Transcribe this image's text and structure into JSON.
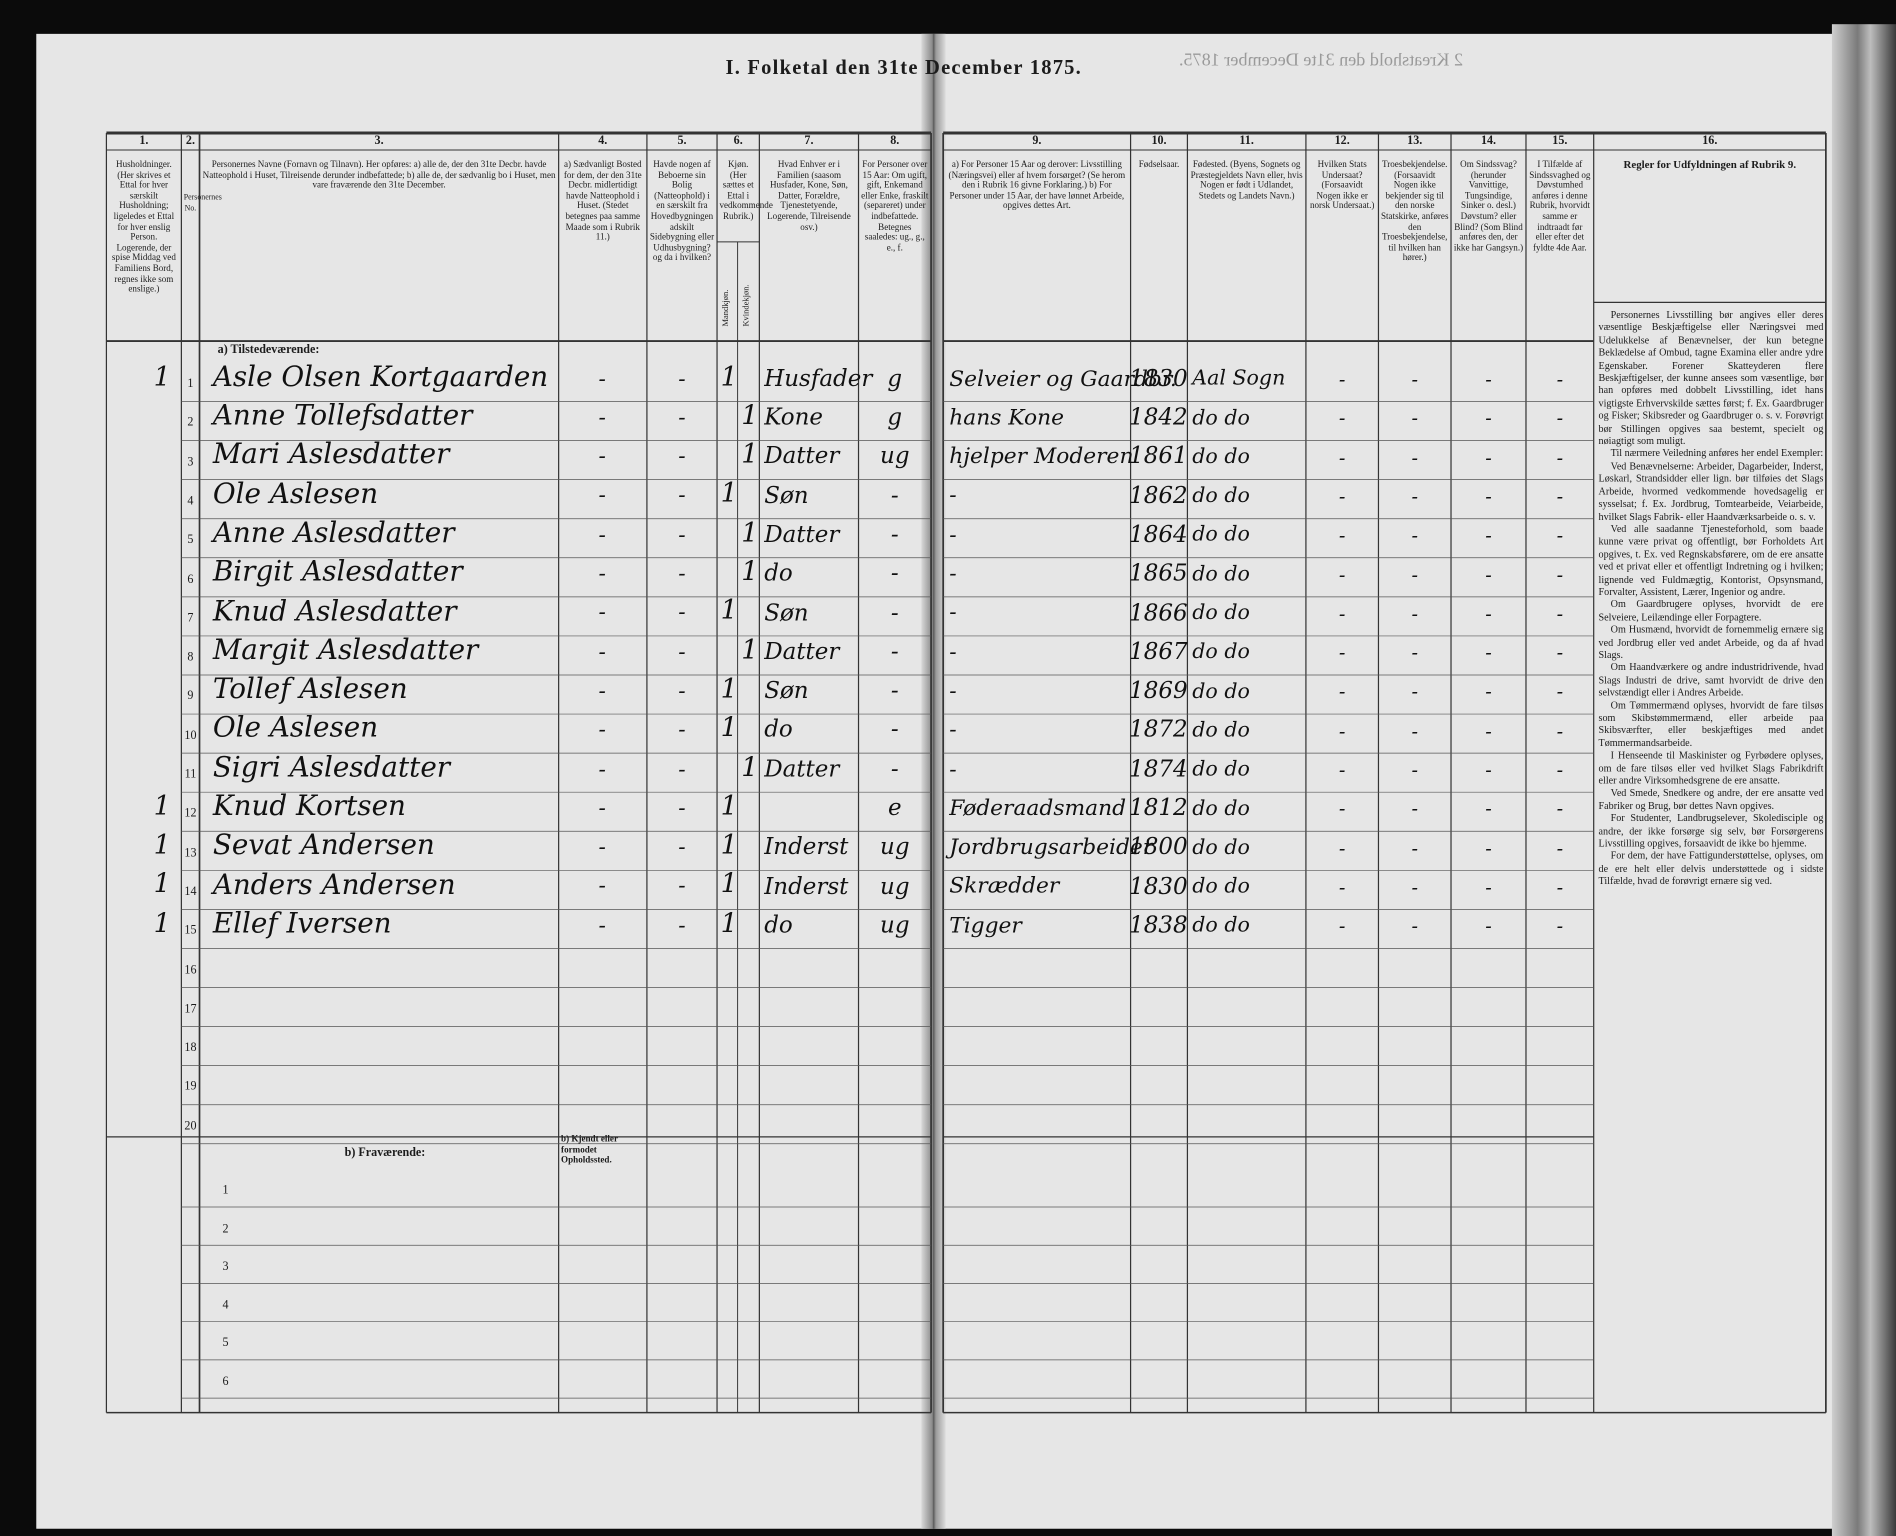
{
  "header": {
    "title": "I. Folketal den 31te December 1875.",
    "right_title": "2 Kreatshold den 31te December 1875."
  },
  "columns": [
    {
      "number": "1.",
      "heading": "Husholdninger. (Her skrives et Ettal for hver særskilt Husholdning; ligeledes et Ettal for hver enslig Person. Logerende, der spise Middag ved Familiens Bord, regnes ikke som enslige.)"
    },
    {
      "number": "2.",
      "heading": "Personernes No."
    },
    {
      "number": "3.",
      "heading": "Personernes Navne (Fornavn og Tilnavn). Her opføres: a) alle de, der den 31te Decbr. havde Natteophold i Huset, Tilreisende derunder indbefattede; b) alle de, der sædvanlig bo i Huset, men vare fraværende den 31te December."
    },
    {
      "number": "4.",
      "heading": "a) Sædvanligt Bosted for dem, der den 31te Decbr. midlertidigt havde Natteophold i Huset. (Stedet betegnes paa samme Maade som i Rubrik 11.)"
    },
    {
      "number": "5.",
      "heading": "Havde nogen af Beboerne sin Bolig (Natteophold) i en særskilt fra Hovedbygningen adskilt Sidebygning eller Udhusbygning? og da i hvilken?"
    },
    {
      "number": "6.",
      "heading": "Kjøn. (Her sættes et Ettal i vedkommende Rubrik.)",
      "sub": [
        "Mandkjøn.",
        "Kvindekjøn."
      ]
    },
    {
      "number": "7.",
      "heading": "Hvad Enhver er i Familien (saasom Husfader, Kone, Søn, Datter, Forældre, Tjenestetyende, Logerende, Tilreisende osv.)"
    },
    {
      "number": "8.",
      "heading": "For Personer over 15 Aar: Om ugift, gift, Enkemand eller Enke, fraskilt (separeret) under indbefattede. Betegnes saaledes: ug., g., e., f."
    },
    {
      "number": "9.",
      "heading": "a) For Personer 15 Aar og derover: Livsstilling (Næringsvei) eller af hvem forsørget? (Se herom den i Rubrik 16 givne Forklaring.) b) For Personer under 15 Aar, der have lønnet Arbeide, opgives dettes Art."
    },
    {
      "number": "10.",
      "heading": "Fødselsaar."
    },
    {
      "number": "11.",
      "heading": "Fødested. (Byens, Sognets og Præstegjeldets Navn eller, hvis Nogen er født i Udlandet, Stedets og Landets Navn.)"
    },
    {
      "number": "12.",
      "heading": "Hvilken Stats Undersaat? (Forsaavidt Nogen ikke er norsk Undersaat.)"
    },
    {
      "number": "13.",
      "heading": "Troesbekjendelse. (Forsaavidt Nogen ikke bekjender sig til den norske Statskirke, anføres den Troesbekjendelse, til hvilken han hører.)"
    },
    {
      "number": "14.",
      "heading": "Om Sindssvag? (herunder Vanvittige, Tungsindige, Sinker o. desl.) Døvstum? eller Blind? (Som Blind anføres den, der ikke har Gangsyn.)"
    },
    {
      "number": "15.",
      "heading": "I Tilfælde af Sindssvaghed og Døvstumhed anføres i denne Rubrik, hvorvidt samme er indtraadt før eller efter det fyldte 4de Aar."
    },
    {
      "number": "16.",
      "heading": "Regler for Udfyldningen af Rubrik 9."
    }
  ],
  "sections": {
    "present": "a) Tilstedeværende:",
    "absent": "b) Fraværende:",
    "absent_col4": "b) Kjendt eller formodet Opholdssted."
  },
  "rows": [
    {
      "number": "1",
      "household": "1",
      "name": "Asle Olsen Kortgaarden",
      "residence": "-",
      "building": "-",
      "male": "1",
      "female": null,
      "family": "Husfader",
      "marital": "g",
      "occupation": "Selveier og Gaardbr.",
      "birth_year": "1830",
      "birthplace": "Aal Sogn",
      "subject": "-",
      "faith": "-",
      "infirmity": "-",
      "onset": "-"
    },
    {
      "number": "2",
      "household": null,
      "name": "Anne Tollefsdatter",
      "residence": "-",
      "building": "-",
      "male": null,
      "female": "1",
      "family": "Kone",
      "marital": "g",
      "occupation": "hans Kone",
      "birth_year": "1842",
      "birthplace": "do do",
      "subject": "-",
      "faith": "-",
      "infirmity": "-",
      "onset": "-"
    },
    {
      "number": "3",
      "household": null,
      "name": "Mari Aslesdatter",
      "residence": "-",
      "building": "-",
      "male": null,
      "female": "1",
      "family": "Datter",
      "marital": "ug",
      "occupation": "hjelper Moderen",
      "birth_year": "1861",
      "birthplace": "do do",
      "subject": "-",
      "faith": "-",
      "infirmity": "-",
      "onset": "-"
    },
    {
      "number": "4",
      "household": null,
      "name": "Ole Aslesen",
      "residence": "-",
      "building": "-",
      "male": "1",
      "female": null,
      "family": "Søn",
      "marital": "-",
      "occupation": "-",
      "birth_year": "1862",
      "birthplace": "do do",
      "subject": "-",
      "faith": "-",
      "infirmity": "-",
      "onset": "-"
    },
    {
      "number": "5",
      "household": null,
      "name": "Anne Aslesdatter",
      "residence": "-",
      "building": "-",
      "male": null,
      "female": "1",
      "family": "Datter",
      "marital": "-",
      "occupation": "-",
      "birth_year": "1864",
      "birthplace": "do do",
      "subject": "-",
      "faith": "-",
      "infirmity": "-",
      "onset": "-"
    },
    {
      "number": "6",
      "household": null,
      "name": "Birgit Aslesdatter",
      "residence": "-",
      "building": "-",
      "male": null,
      "female": "1",
      "family": "do",
      "marital": "-",
      "occupation": "-",
      "birth_year": "1865",
      "birthplace": "do do",
      "subject": "-",
      "faith": "-",
      "infirmity": "-",
      "onset": "-"
    },
    {
      "number": "7",
      "household": null,
      "name": "Knud Aslesdatter",
      "residence": "-",
      "building": "-",
      "male": "1",
      "female": null,
      "family": "Søn",
      "marital": "-",
      "occupation": "-",
      "birth_year": "1866",
      "birthplace": "do do",
      "subject": "-",
      "faith": "-",
      "infirmity": "-",
      "onset": "-"
    },
    {
      "number": "8",
      "household": null,
      "name": "Margit Aslesdatter",
      "residence": "-",
      "building": "-",
      "male": null,
      "female": "1",
      "family": "Datter",
      "marital": "-",
      "occupation": "-",
      "birth_year": "1867",
      "birthplace": "do do",
      "subject": "-",
      "faith": "-",
      "infirmity": "-",
      "onset": "-"
    },
    {
      "number": "9",
      "household": null,
      "name": "Tollef Aslesen",
      "residence": "-",
      "building": "-",
      "male": "1",
      "female": null,
      "family": "Søn",
      "marital": "-",
      "occupation": "-",
      "birth_year": "1869",
      "birthplace": "do do",
      "subject": "-",
      "faith": "-",
      "infirmity": "-",
      "onset": "-"
    },
    {
      "number": "10",
      "household": null,
      "name": "Ole Aslesen",
      "residence": "-",
      "building": "-",
      "male": "1",
      "female": null,
      "family": "do",
      "marital": "-",
      "occupation": "-",
      "birth_year": "1872",
      "birthplace": "do do",
      "subject": "-",
      "faith": "-",
      "infirmity": "-",
      "onset": "-"
    },
    {
      "number": "11",
      "household": null,
      "name": "Sigri Aslesdatter",
      "residence": "-",
      "building": "-",
      "male": null,
      "female": "1",
      "family": "Datter",
      "marital": "-",
      "occupation": "-",
      "birth_year": "1874",
      "birthplace": "do do",
      "subject": "-",
      "faith": "-",
      "infirmity": "-",
      "onset": "-"
    },
    {
      "number": "12",
      "household": "1",
      "name": "Knud Kortsen",
      "residence": "-",
      "building": "-",
      "male": "1",
      "female": null,
      "family": null,
      "marital": "e",
      "occupation": "Føderaadsmand",
      "birth_year": "1812",
      "birthplace": "do do",
      "subject": "-",
      "faith": "-",
      "infirmity": "-",
      "onset": "-"
    },
    {
      "number": "13",
      "household": "1",
      "name": "Sevat Andersen",
      "residence": "-",
      "building": "-",
      "male": "1",
      "female": null,
      "family": "Inderst",
      "marital": "ug",
      "occupation": "Jordbrugsarbeider",
      "birth_year": "1800",
      "birthplace": "do do",
      "subject": "-",
      "faith": "-",
      "infirmity": "-",
      "onset": "-"
    },
    {
      "number": "14",
      "household": "1",
      "name": "Anders Andersen",
      "residence": "-",
      "building": "-",
      "male": "1",
      "female": null,
      "family": "Inderst",
      "marital": "ug",
      "occupation": "Skrædder",
      "birth_year": "1830",
      "birthplace": "do do",
      "subject": "-",
      "faith": "-",
      "infirmity": "-",
      "onset": "-"
    },
    {
      "number": "15",
      "household": "1",
      "name": "Ellef Iversen",
      "residence": "-",
      "building": "-",
      "male": "1",
      "female": null,
      "family": "do",
      "marital": "ug",
      "occupation": "Tigger",
      "birth_year": "1838",
      "birthplace": "do do",
      "subject": "-",
      "faith": "-",
      "infirmity": "-",
      "onset": "-"
    }
  ],
  "empty_row_numbers": [
    "16",
    "17",
    "18",
    "19",
    "20"
  ],
  "absent_row_numbers": [
    "1",
    "2",
    "3",
    "4",
    "5",
    "6"
  ],
  "rules": [
    "Personernes Livsstilling bør angives eller deres væsentlige Beskjæftigelse eller Næringsvei med Udelukkelse af Benævnelser, der kun betegne Beklædelse af Ombud, tagne Examina eller andre ydre Egenskaber. Forener Skatteyderen flere Beskjæftigelser, der kunne ansees som væsentlige, bør han opføres med dobbelt Livsstilling, idet hans vigtigste Erhvervskilde sættes først; f. Ex. Gaardbruger og Fisker; Skibsreder og Gaardbruger o. s. v. Forøvrigt bør Stillingen opgives saa bestemt, specielt og nøiagtigt som muligt.",
    "Til nærmere Veiledning anføres her endel Exempler:",
    "Ved Benævnelserne: Arbeider, Dagarbeider, Inderst, Løskarl, Strandsidder eller lign. bør tilføies det Slags Arbeide, hvormed vedkommende hovedsagelig er sysselsat; f. Ex. Jordbrug, Tomtearbeide, Veiarbeide, hvilket Slags Fabrik- eller Haandværksarbeide o. s. v.",
    "Ved alle saadanne Tjenesteforhold, som baade kunne være privat og offentligt, bør Forholdets Art opgives, t. Ex. ved Regnskabsførere, om de ere ansatte ved et privat eller et offentligt Indretning og i hvilken; lignende ved Fuldmægtig, Kontorist, Opsynsmand, Forvalter, Assistent, Lærer, Ingenior og andre.",
    "Om Gaardbrugere oplyses, hvorvidt de ere Selveiere, Leilændinge eller Forpagtere.",
    "Om Husmænd, hvorvidt de fornemmelig ernære sig ved Jordbrug eller ved andet Arbeide, og da af hvad Slags.",
    "Om Haandværkere og andre industridrivende, hvad Slags Industri de drive, samt hvorvidt de drive den selvstændigt eller i Andres Arbeide.",
    "Om Tømmermænd oplyses, hvorvidt de fare tilsøs som Skibstømmermænd, eller arbeide paa Skibsværfter, eller beskjæftiges med andet Tømmermandsarbeide.",
    "I Henseende til Maskinister og Fyrbødere oplyses, om de fare tilsøs eller ved hvilket Slags Fabrikdrift eller andre Virksomhedsgrene de ere ansatte.",
    "Ved Smede, Snedkere og andre, der ere ansatte ved Fabriker og Brug, bør dettes Navn opgives.",
    "For Studenter, Landbrugselever, Skoledisciple og andre, der ikke forsørge sig selv, bør Forsørgerens Livsstilling opgives, forsaavidt de ikke bo hjemme.",
    "For dem, der have Fattigunderstøttelse, oplyses, om de ere helt eller delvis understøttede og i sidste Tilfælde, hvad de forøvrigt ernære sig ved."
  ]
}
